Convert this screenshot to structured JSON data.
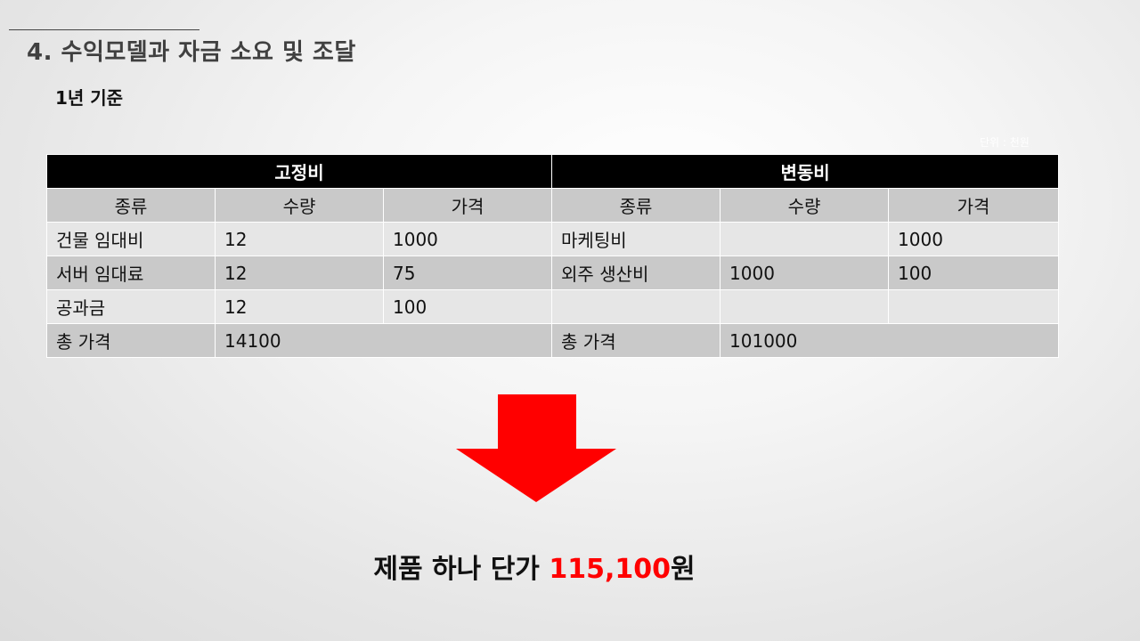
{
  "heading": "4. 수익모델과 자금 소요 및 조달",
  "subheading": "1년 기준",
  "unit_note": "단위 : 천원",
  "table": {
    "fixed_group": "고정비",
    "variable_group": "변동비",
    "columns": {
      "kind": "종류",
      "qty": "수량",
      "price": "가격"
    },
    "rows": [
      {
        "fixed": {
          "kind": "건물 임대비",
          "qty": "12",
          "price": "1000"
        },
        "variable": {
          "kind": "마케팅비",
          "qty": "",
          "price": "1000"
        }
      },
      {
        "fixed": {
          "kind": "서버 임대료",
          "qty": "12",
          "price": "75"
        },
        "variable": {
          "kind": "외주 생산비",
          "qty": "1000",
          "price": "100"
        }
      },
      {
        "fixed": {
          "kind": "공과금",
          "qty": "12",
          "price": "100"
        },
        "variable": {
          "kind": "",
          "qty": "",
          "price": ""
        }
      }
    ],
    "totals": {
      "fixed_label": "총 가격",
      "fixed_value": "14100",
      "variable_label": "총 가격",
      "variable_value": "101000"
    }
  },
  "arrow_icon": "down-arrow-icon",
  "result": {
    "prefix": "제품 하나 단가 ",
    "price": "115,100",
    "suffix": "원",
    "price_color": "#ff0000"
  }
}
